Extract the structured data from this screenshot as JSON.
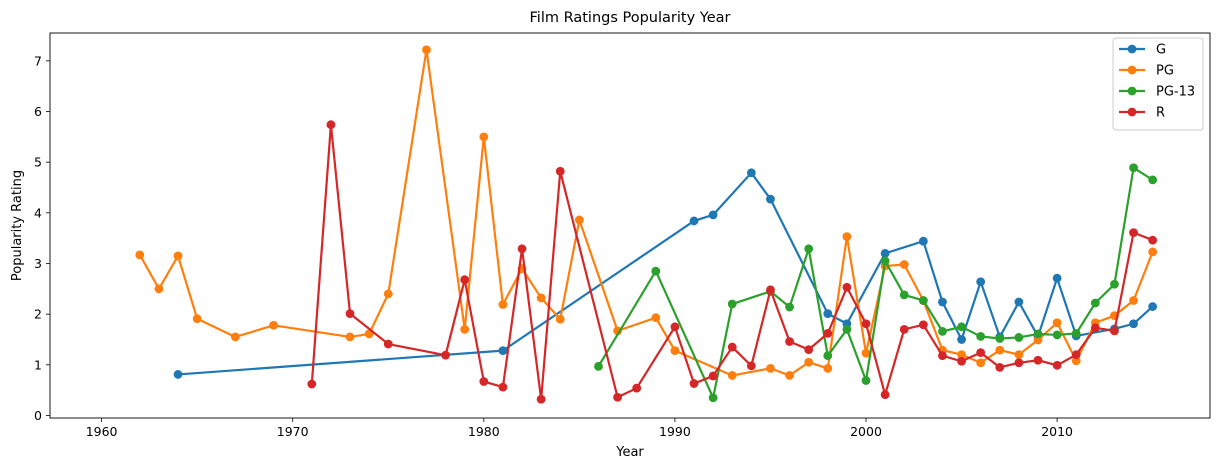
{
  "chart_data": {
    "type": "line",
    "title": "Film Ratings Popularity Year",
    "xlabel": "Year",
    "ylabel": "Popularity Rating",
    "xlim": [
      1957.3,
      2018.0
    ],
    "ylim": [
      -0.05,
      7.55
    ],
    "xticks": [
      1960,
      1970,
      1980,
      1990,
      2000,
      2010
    ],
    "yticks": [
      0,
      1,
      2,
      3,
      4,
      5,
      6,
      7
    ],
    "grid": false,
    "legend_position": "top-right",
    "series": [
      {
        "name": "G",
        "color": "#1f77b4",
        "x": [
          1964,
          1981,
          1991,
          1992,
          1994,
          1995,
          1998,
          1999,
          2001,
          2003,
          2004,
          2005,
          2006,
          2007,
          2008,
          2009,
          2010,
          2011,
          2013,
          2014,
          2015
        ],
        "y": [
          0.81,
          1.28,
          3.84,
          3.96,
          4.79,
          4.27,
          2.01,
          1.81,
          3.2,
          3.44,
          2.24,
          1.5,
          2.64,
          1.55,
          2.24,
          1.56,
          2.71,
          1.57,
          1.71,
          1.81,
          2.15
        ]
      },
      {
        "name": "PG",
        "color": "#ff7f0e",
        "x": [
          1962,
          1963,
          1964,
          1965,
          1967,
          1969,
          1973,
          1974,
          1975,
          1977,
          1979,
          1980,
          1981,
          1982,
          1983,
          1984,
          1985,
          1987,
          1989,
          1990,
          1993,
          1995,
          1996,
          1997,
          1998,
          1999,
          2000,
          2001,
          2002,
          2003,
          2004,
          2005,
          2006,
          2007,
          2008,
          2009,
          2010,
          2011,
          2012,
          2013,
          2014,
          2015
        ],
        "y": [
          3.17,
          2.5,
          3.15,
          1.91,
          1.55,
          1.78,
          1.55,
          1.61,
          2.4,
          7.22,
          1.7,
          5.5,
          2.19,
          2.9,
          2.32,
          1.9,
          3.86,
          1.67,
          1.93,
          1.28,
          0.79,
          0.93,
          0.79,
          1.05,
          0.93,
          3.53,
          1.23,
          2.95,
          2.98,
          2.27,
          1.29,
          1.2,
          1.04,
          1.29,
          1.2,
          1.49,
          1.83,
          1.08,
          1.83,
          1.97,
          2.27,
          3.23
        ]
      },
      {
        "name": "PG-13",
        "color": "#2ca02c",
        "x": [
          1986,
          1989,
          1992,
          1993,
          1995,
          1996,
          1997,
          1998,
          1999,
          2000,
          2001,
          2002,
          2003,
          2004,
          2005,
          2006,
          2007,
          2008,
          2009,
          2010,
          2011,
          2012,
          2013,
          2014,
          2015
        ],
        "y": [
          0.97,
          2.85,
          0.35,
          2.2,
          2.45,
          2.14,
          3.29,
          1.18,
          1.7,
          0.69,
          3.05,
          2.38,
          2.27,
          1.66,
          1.75,
          1.56,
          1.52,
          1.54,
          1.61,
          1.59,
          1.62,
          2.22,
          2.59,
          4.89,
          4.65
        ]
      },
      {
        "name": "R",
        "color": "#d62728",
        "x": [
          1971,
          1972,
          1973,
          1975,
          1978,
          1979,
          1980,
          1981,
          1982,
          1983,
          1984,
          1987,
          1988,
          1990,
          1991,
          1992,
          1993,
          1994,
          1995,
          1996,
          1997,
          1998,
          1999,
          2000,
          2001,
          2002,
          2003,
          2004,
          2005,
          2006,
          2007,
          2008,
          2009,
          2010,
          2011,
          2012,
          2013,
          2014,
          2015
        ],
        "y": [
          0.62,
          5.74,
          2.01,
          1.41,
          1.19,
          2.68,
          0.67,
          0.56,
          3.29,
          0.32,
          4.82,
          0.36,
          0.54,
          1.75,
          0.63,
          0.78,
          1.35,
          0.98,
          2.48,
          1.46,
          1.3,
          1.62,
          2.53,
          1.81,
          0.41,
          1.7,
          1.79,
          1.18,
          1.07,
          1.24,
          0.95,
          1.04,
          1.09,
          0.99,
          1.2,
          1.73,
          1.67,
          3.61,
          3.46
        ]
      }
    ]
  }
}
